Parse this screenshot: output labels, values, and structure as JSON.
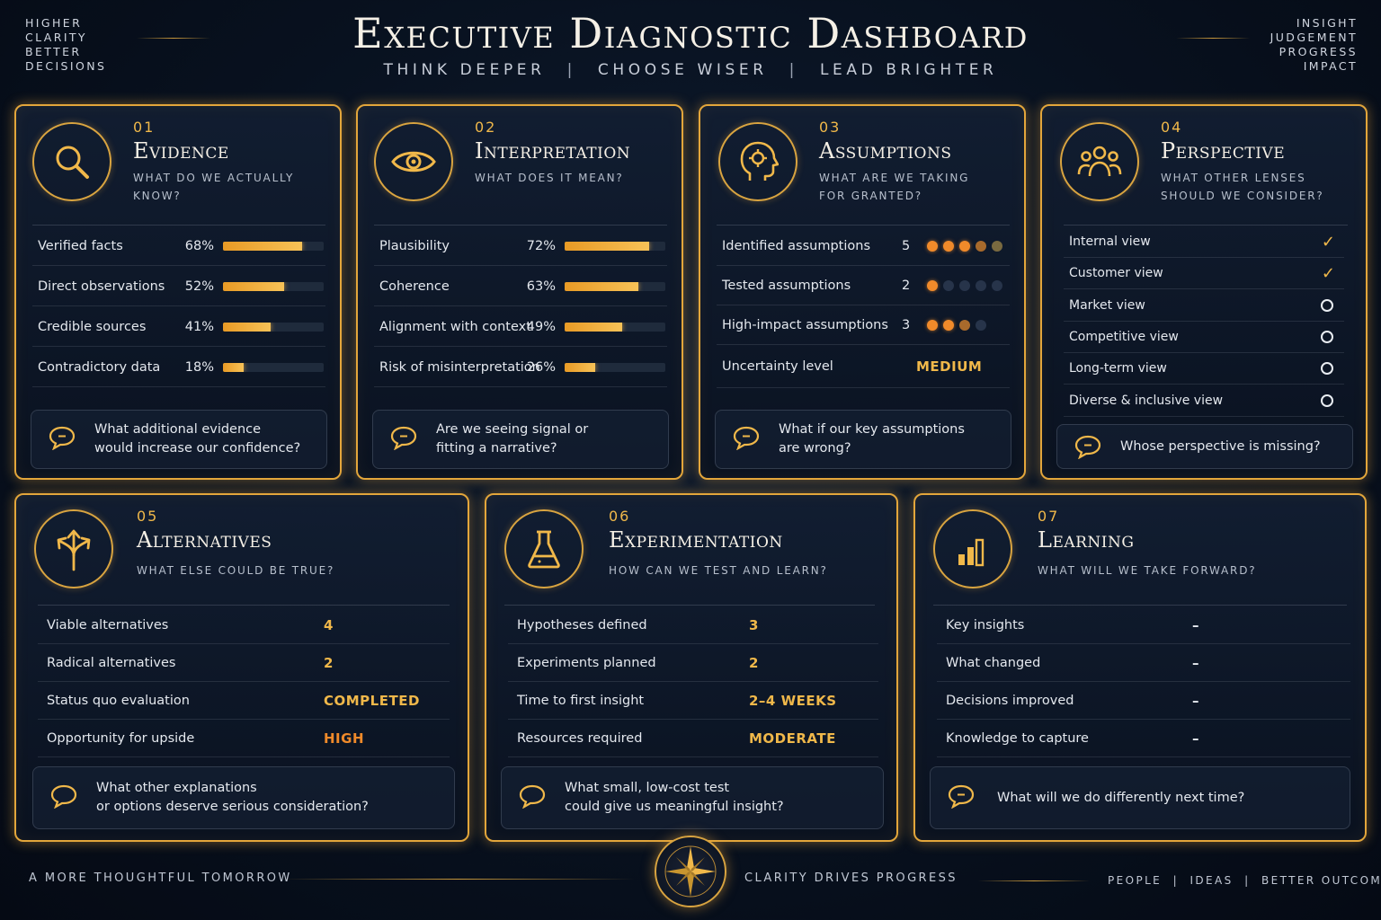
{
  "header": {
    "title": "Executive Diagnostic Dashboard",
    "tagline": [
      "THINK DEEPER",
      "CHOOSE WISER",
      "LEAD BRIGHTER"
    ],
    "left_corner": [
      "HIGHER",
      "CLARITY",
      "BETTER",
      "DECISIONS"
    ],
    "right_corner": [
      "INSIGHT",
      "JUDGEMENT",
      "PROGRESS",
      "IMPACT"
    ]
  },
  "colors": {
    "accent": "#f0b84a",
    "orange": "#f08a2a",
    "background": "#08111f"
  },
  "cards": {
    "evidence": {
      "num": "01",
      "title": "Evidence",
      "subtitle": "WHAT DO WE ACTUALLY KNOW?",
      "icon": "search-icon",
      "rows": [
        {
          "label": "Verified facts",
          "pct": "68%",
          "value": 0.68
        },
        {
          "label": "Direct observations",
          "pct": "52%",
          "value": 0.52
        },
        {
          "label": "Credible sources",
          "pct": "41%",
          "value": 0.41
        },
        {
          "label": "Contradictory data",
          "pct": "18%",
          "value": 0.18
        }
      ],
      "question": "What additional evidence\nwould increase our confidence?"
    },
    "interpretation": {
      "num": "02",
      "title": "Interpretation",
      "subtitle": "WHAT DOES IT MEAN?",
      "icon": "eye-icon",
      "rows": [
        {
          "label": "Plausibility",
          "pct": "72%",
          "value": 0.72
        },
        {
          "label": "Coherence",
          "pct": "63%",
          "value": 0.63
        },
        {
          "label": "Alignment with context",
          "pct": "49%",
          "value": 0.49
        },
        {
          "label": "Risk of misinterpretation",
          "pct": "26%",
          "value": 0.26
        }
      ],
      "question": "Are we seeing signal or\nfitting a narrative?"
    },
    "assumptions": {
      "num": "03",
      "title": "Assumptions",
      "subtitle": "WHAT ARE WE TAKING\nFOR GRANTED?",
      "icon": "head-gear-icon",
      "rows": [
        {
          "label": "Identified assumptions",
          "count": "5"
        },
        {
          "label": "Tested assumptions",
          "count": "2"
        },
        {
          "label": "High-impact assumptions",
          "count": "3"
        },
        {
          "label": "Uncertainty level",
          "status": "MEDIUM"
        }
      ],
      "question": "What if our key assumptions\nare wrong?"
    },
    "perspective": {
      "num": "04",
      "title": "Perspective",
      "subtitle": "WHAT OTHER LENSES\nSHOULD WE CONSIDER?",
      "icon": "people-icon",
      "rows": [
        {
          "label": "Internal view",
          "checked": true
        },
        {
          "label": "Customer view",
          "checked": true
        },
        {
          "label": "Market view",
          "checked": false
        },
        {
          "label": "Competitive view",
          "checked": false
        },
        {
          "label": "Long-term view",
          "checked": false
        },
        {
          "label": "Diverse & inclusive view",
          "checked": false
        }
      ],
      "question": "Whose perspective is missing?"
    },
    "alternatives": {
      "num": "05",
      "title": "Alternatives",
      "subtitle": "WHAT ELSE COULD BE TRUE?",
      "icon": "branching-arrows-icon",
      "rows": [
        {
          "label": "Viable alternatives",
          "value": "4"
        },
        {
          "label": "Radical alternatives",
          "value": "2"
        },
        {
          "label": "Status quo evaluation",
          "value": "COMPLETED"
        },
        {
          "label": "Opportunity for upside",
          "value": "HIGH"
        }
      ],
      "question": "What other explanations\nor options deserve serious consideration?"
    },
    "experimentation": {
      "num": "06",
      "title": "Experimentation",
      "subtitle": "HOW CAN WE TEST AND LEARN?",
      "icon": "flask-icon",
      "rows": [
        {
          "label": "Hypotheses defined",
          "value": "3"
        },
        {
          "label": "Experiments planned",
          "value": "2"
        },
        {
          "label": "Time to first insight",
          "value": "2–4 WEEKS"
        },
        {
          "label": "Resources required",
          "value": "MODERATE"
        }
      ],
      "question": "What small, low-cost test\ncould give us meaningful insight?"
    },
    "learning": {
      "num": "07",
      "title": "Learning",
      "subtitle": "WHAT WILL WE TAKE FORWARD?",
      "icon": "bar-chart-icon",
      "rows": [
        {
          "label": "Key insights",
          "value": "–"
        },
        {
          "label": "What changed",
          "value": "–"
        },
        {
          "label": "Decisions improved",
          "value": "–"
        },
        {
          "label": "Knowledge to capture",
          "value": "–"
        }
      ],
      "question": "What will we do differently next time?"
    }
  },
  "footer": {
    "left": "A MORE THOUGHTFUL TOMORROW",
    "center": "CLARITY DRIVES PROGRESS",
    "right": "PEOPLE  |  IDEAS  |  BETTER OUTCOMES",
    "emblem": "compass-icon"
  }
}
